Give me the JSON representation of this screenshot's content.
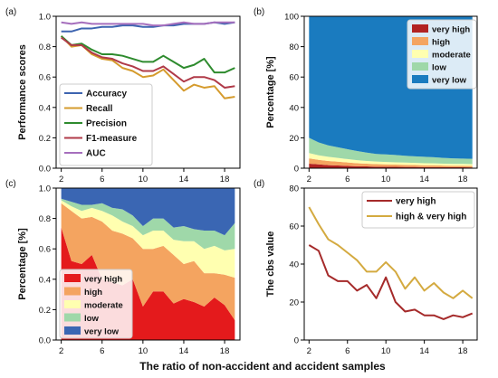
{
  "xlabel": "The ratio of non-accident and accident samples",
  "chart_data": [
    {
      "panel": "(a)",
      "type": "line",
      "ylabel": "Performance scores",
      "xlim": [
        1.5,
        19.5
      ],
      "ylim": [
        0,
        1.0
      ],
      "xticks": [
        2,
        6,
        10,
        14,
        18
      ],
      "yticks": [
        0,
        0.2,
        0.4,
        0.6,
        0.8,
        1.0
      ],
      "x": [
        2,
        3,
        4,
        5,
        6,
        7,
        8,
        9,
        10,
        11,
        12,
        13,
        14,
        15,
        16,
        17,
        18,
        19
      ],
      "legend_position": "lower-left",
      "series": [
        {
          "name": "Accuracy",
          "color": "#3d64b0",
          "values": [
            0.9,
            0.9,
            0.92,
            0.92,
            0.93,
            0.93,
            0.94,
            0.94,
            0.93,
            0.93,
            0.94,
            0.94,
            0.95,
            0.95,
            0.95,
            0.96,
            0.95,
            0.96
          ]
        },
        {
          "name": "Recall",
          "color": "#d59b2d",
          "values": [
            0.87,
            0.8,
            0.81,
            0.75,
            0.72,
            0.71,
            0.66,
            0.64,
            0.6,
            0.61,
            0.65,
            0.58,
            0.51,
            0.55,
            0.53,
            0.54,
            0.46,
            0.47
          ]
        },
        {
          "name": "Precision",
          "color": "#2e8b2e",
          "values": [
            0.87,
            0.81,
            0.82,
            0.78,
            0.75,
            0.75,
            0.74,
            0.72,
            0.7,
            0.7,
            0.74,
            0.7,
            0.66,
            0.68,
            0.72,
            0.63,
            0.63,
            0.66
          ]
        },
        {
          "name": "F1-measure",
          "color": "#b03a48",
          "values": [
            0.86,
            0.81,
            0.81,
            0.76,
            0.73,
            0.72,
            0.69,
            0.67,
            0.64,
            0.64,
            0.67,
            0.62,
            0.57,
            0.6,
            0.6,
            0.58,
            0.53,
            0.54
          ]
        },
        {
          "name": "AUC",
          "color": "#a66fbd",
          "values": [
            0.96,
            0.95,
            0.96,
            0.95,
            0.95,
            0.95,
            0.95,
            0.95,
            0.95,
            0.94,
            0.94,
            0.95,
            0.96,
            0.95,
            0.95,
            0.96,
            0.96,
            0.96
          ]
        }
      ]
    },
    {
      "panel": "(b)",
      "type": "area",
      "stacked": true,
      "ylabel": "Percentage [%]",
      "xlim": [
        1.5,
        19.5
      ],
      "ylim": [
        0,
        100
      ],
      "xticks": [
        2,
        6,
        10,
        14,
        18
      ],
      "yticks": [
        0,
        20,
        40,
        60,
        80,
        100
      ],
      "x": [
        2,
        3,
        4,
        5,
        6,
        7,
        8,
        9,
        10,
        11,
        12,
        13,
        14,
        15,
        16,
        17,
        18,
        19
      ],
      "legend_position": "upper-right",
      "series": [
        {
          "name": "very high",
          "color": "#b22222",
          "values": [
            3.0,
            2.5,
            2.0,
            1.8,
            1.5,
            1.3,
            1.2,
            1.0,
            1.0,
            0.9,
            0.8,
            0.8,
            0.7,
            0.7,
            0.6,
            0.6,
            0.6,
            0.5
          ]
        },
        {
          "name": "high",
          "color": "#f4a460",
          "values": [
            3.5,
            3.0,
            2.8,
            2.5,
            2.3,
            2.0,
            1.8,
            1.7,
            1.5,
            1.5,
            1.4,
            1.3,
            1.2,
            1.2,
            1.1,
            1.0,
            1.0,
            1.0
          ]
        },
        {
          "name": "moderate",
          "color": "#ffffb0",
          "values": [
            3.5,
            3.0,
            2.7,
            2.5,
            2.2,
            2.0,
            1.8,
            1.7,
            1.6,
            1.5,
            1.5,
            1.4,
            1.4,
            1.3,
            1.3,
            1.2,
            1.2,
            1.2
          ]
        },
        {
          "name": "low",
          "color": "#9fd8a9",
          "values": [
            10.0,
            8.5,
            7.5,
            7.0,
            6.5,
            6.0,
            5.5,
            5.0,
            5.0,
            4.8,
            4.5,
            4.3,
            4.2,
            4.0,
            3.8,
            3.7,
            3.5,
            3.5
          ]
        },
        {
          "name": "very low",
          "color": "#1a7bbf",
          "values": [
            80.0,
            83.0,
            85.0,
            86.2,
            87.5,
            88.7,
            89.7,
            90.6,
            90.9,
            91.3,
            91.8,
            92.2,
            92.5,
            92.8,
            93.2,
            93.5,
            93.7,
            93.8
          ]
        }
      ]
    },
    {
      "panel": "(c)",
      "type": "area",
      "stacked": true,
      "ylabel": "Percentage [%]",
      "xlim": [
        1.5,
        19.5
      ],
      "ylim": [
        0,
        1.0
      ],
      "xticks": [
        2,
        6,
        10,
        14,
        18
      ],
      "yticks": [
        0,
        0.2,
        0.4,
        0.6,
        0.8,
        1.0
      ],
      "x": [
        2,
        3,
        4,
        5,
        6,
        7,
        8,
        9,
        10,
        11,
        12,
        13,
        14,
        15,
        16,
        17,
        18,
        19
      ],
      "legend_position": "lower-left",
      "series": [
        {
          "name": "very high",
          "color": "#e41a1c",
          "values": [
            0.74,
            0.52,
            0.5,
            0.56,
            0.4,
            0.38,
            0.36,
            0.4,
            0.22,
            0.32,
            0.32,
            0.24,
            0.27,
            0.25,
            0.22,
            0.28,
            0.23,
            0.13
          ]
        },
        {
          "name": "high",
          "color": "#f4a460",
          "values": [
            0.16,
            0.33,
            0.3,
            0.25,
            0.38,
            0.34,
            0.34,
            0.27,
            0.38,
            0.28,
            0.3,
            0.32,
            0.23,
            0.27,
            0.22,
            0.16,
            0.2,
            0.28
          ]
        },
        {
          "name": "moderate",
          "color": "#ffffb0",
          "values": [
            0.02,
            0.03,
            0.05,
            0.06,
            0.07,
            0.1,
            0.08,
            0.08,
            0.09,
            0.12,
            0.1,
            0.1,
            0.15,
            0.13,
            0.16,
            0.18,
            0.16,
            0.19
          ]
        },
        {
          "name": "low",
          "color": "#9fd8a9",
          "values": [
            0.01,
            0.03,
            0.04,
            0.02,
            0.05,
            0.05,
            0.08,
            0.07,
            0.06,
            0.08,
            0.08,
            0.08,
            0.1,
            0.08,
            0.12,
            0.1,
            0.1,
            0.17
          ]
        },
        {
          "name": "very low",
          "color": "#3a66b3",
          "values": [
            0.07,
            0.09,
            0.11,
            0.11,
            0.1,
            0.13,
            0.14,
            0.18,
            0.25,
            0.2,
            0.2,
            0.26,
            0.25,
            0.27,
            0.28,
            0.28,
            0.31,
            0.23
          ]
        }
      ]
    },
    {
      "panel": "(d)",
      "type": "line",
      "ylabel": "The cbs value",
      "xlim": [
        1.5,
        19.5
      ],
      "ylim": [
        0,
        80
      ],
      "xticks": [
        2,
        6,
        10,
        14,
        18
      ],
      "yticks": [
        0,
        20,
        40,
        60,
        80
      ],
      "x": [
        2,
        3,
        4,
        5,
        6,
        7,
        8,
        9,
        10,
        11,
        12,
        13,
        14,
        15,
        16,
        17,
        18,
        19
      ],
      "legend_position": "upper-right",
      "series": [
        {
          "name": "very high",
          "color": "#a52a2a",
          "values": [
            50,
            47,
            34,
            31,
            31,
            26,
            29,
            22,
            33,
            20,
            15,
            16,
            13,
            13,
            11,
            13,
            12,
            14
          ]
        },
        {
          "name": "high & very high",
          "color": "#d4aa40",
          "values": [
            70,
            61,
            53,
            50,
            46,
            42,
            36,
            36,
            41,
            36,
            27,
            33,
            26,
            30,
            25,
            22,
            26,
            22
          ]
        }
      ]
    }
  ]
}
